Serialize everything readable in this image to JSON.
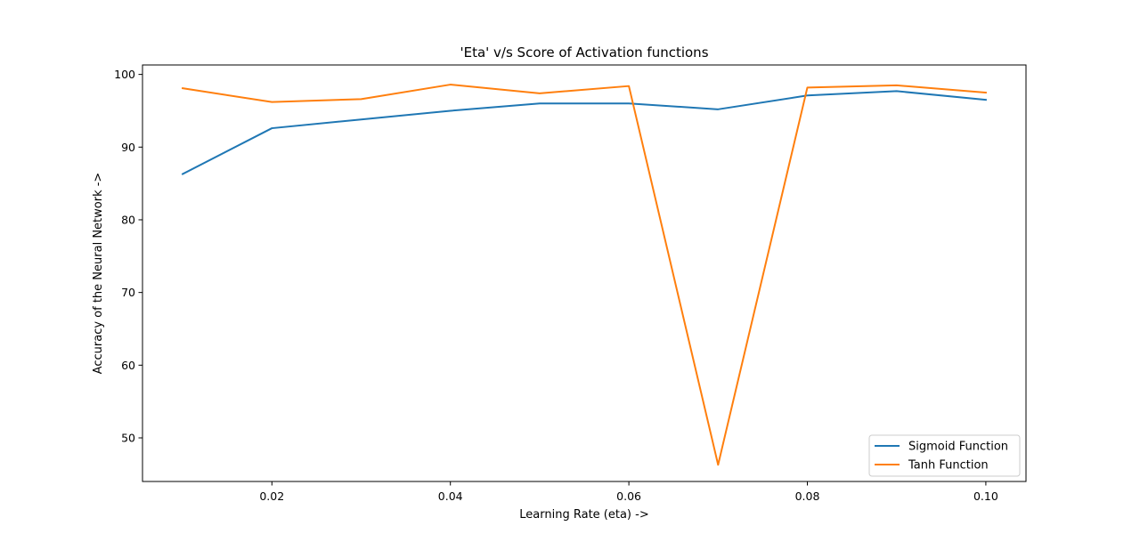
{
  "chart_data": {
    "type": "line",
    "title": "'Eta' v/s Score of Activation functions",
    "xlabel": "Learning Rate (eta) ->",
    "ylabel": "Accuracy of the Neural Network ->",
    "x": [
      0.01,
      0.02,
      0.03,
      0.04,
      0.05,
      0.06,
      0.07,
      0.08,
      0.09,
      0.1
    ],
    "xlim": [
      0.0055,
      0.1045
    ],
    "ylim": [
      44.0,
      101.3
    ],
    "xticks": [
      0.02,
      0.04,
      0.06,
      0.08,
      0.1
    ],
    "xtick_labels": [
      "0.02",
      "0.04",
      "0.06",
      "0.08",
      "0.10"
    ],
    "yticks": [
      50,
      60,
      70,
      80,
      90,
      100
    ],
    "ytick_labels": [
      "50",
      "60",
      "70",
      "80",
      "90",
      "100"
    ],
    "grid": false,
    "legend_position": "bottom-right",
    "series": [
      {
        "name": "Sigmoid Function",
        "color": "#1f77b4",
        "values": [
          86.3,
          92.6,
          93.8,
          95.0,
          96.0,
          96.0,
          95.2,
          97.1,
          97.7,
          96.5
        ]
      },
      {
        "name": "Tanh Function",
        "color": "#ff7f0e",
        "values": [
          98.1,
          96.2,
          96.6,
          98.6,
          97.4,
          98.4,
          46.3,
          98.2,
          98.5,
          97.5
        ]
      }
    ]
  }
}
